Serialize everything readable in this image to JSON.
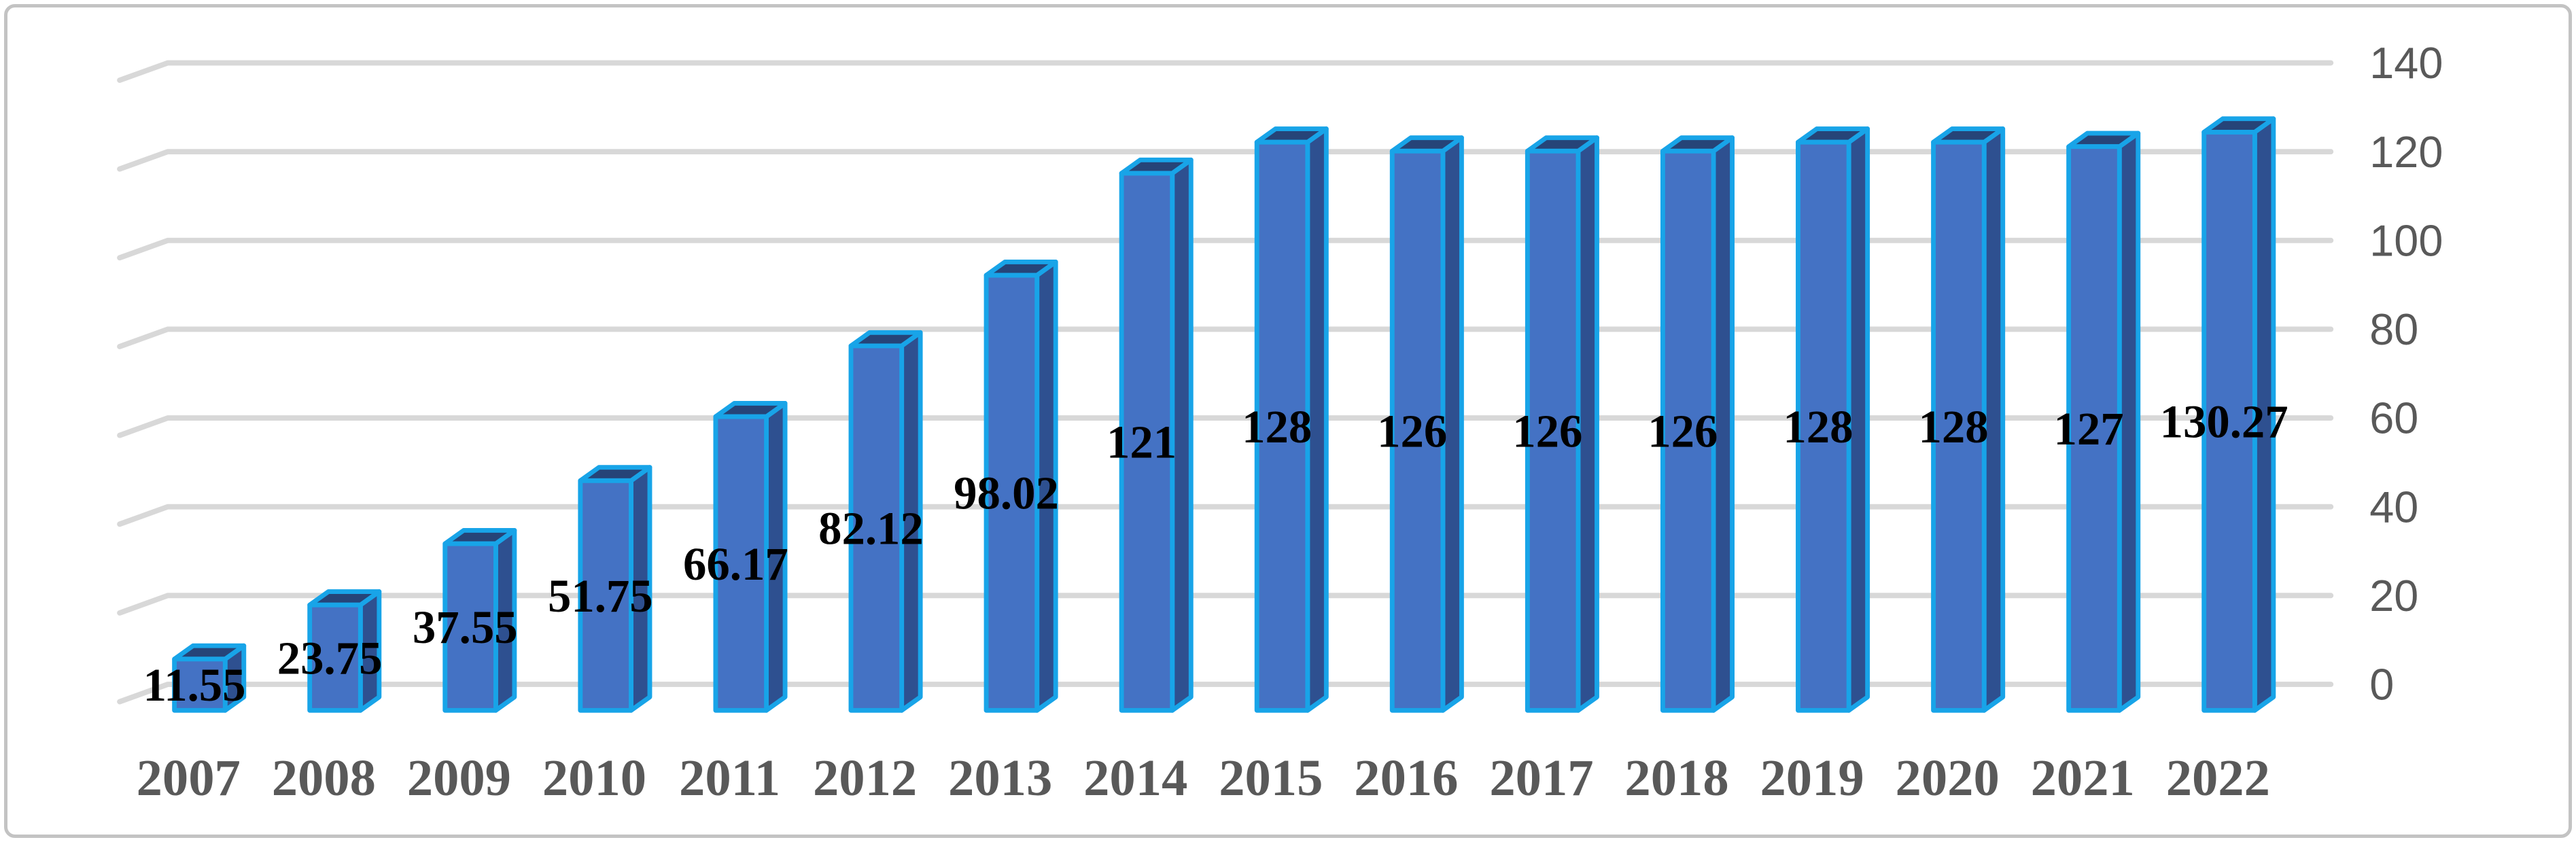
{
  "figure": {
    "kind": "3d-bar-chart-screenshot",
    "title": ""
  },
  "chart_data": {
    "type": "bar",
    "variant": "3d-column",
    "title": "",
    "xlabel": "",
    "ylabel": "",
    "categories": [
      "2007",
      "2008",
      "2009",
      "2010",
      "2011",
      "2012",
      "2013",
      "2014",
      "2015",
      "2016",
      "2017",
      "2018",
      "2019",
      "2020",
      "2021",
      "2022"
    ],
    "values": [
      11.55,
      23.75,
      37.55,
      51.75,
      66.17,
      82.12,
      98.02,
      121,
      128,
      126,
      126,
      126,
      128,
      128,
      127,
      130.27
    ],
    "value_labels": [
      "11.55",
      "23.75",
      "37.55",
      "51.75",
      "66.17",
      "82.12",
      "98.02",
      "121",
      "128",
      "126",
      "126",
      "126",
      "128",
      "128",
      "127",
      "130.27"
    ],
    "ylim": [
      0,
      140
    ],
    "yticks": [
      0,
      20,
      40,
      60,
      80,
      100,
      120,
      140
    ],
    "ytick_labels": [
      "0",
      "20",
      "40",
      "60",
      "80",
      "100",
      "120",
      "140"
    ],
    "y_axis_side": "right",
    "grid": true,
    "legend": false,
    "colors": {
      "bar_front": "#4472C4",
      "bar_side": "#2E5090",
      "bar_top": "#264478",
      "bar_outline": "#18A4E8",
      "gridline": "#D8D8D8",
      "data_label": "#000000",
      "axis_label": "#595959",
      "category_label": "#595959",
      "frame_border": "#C3C3C3",
      "background": "#FFFFFF"
    }
  }
}
